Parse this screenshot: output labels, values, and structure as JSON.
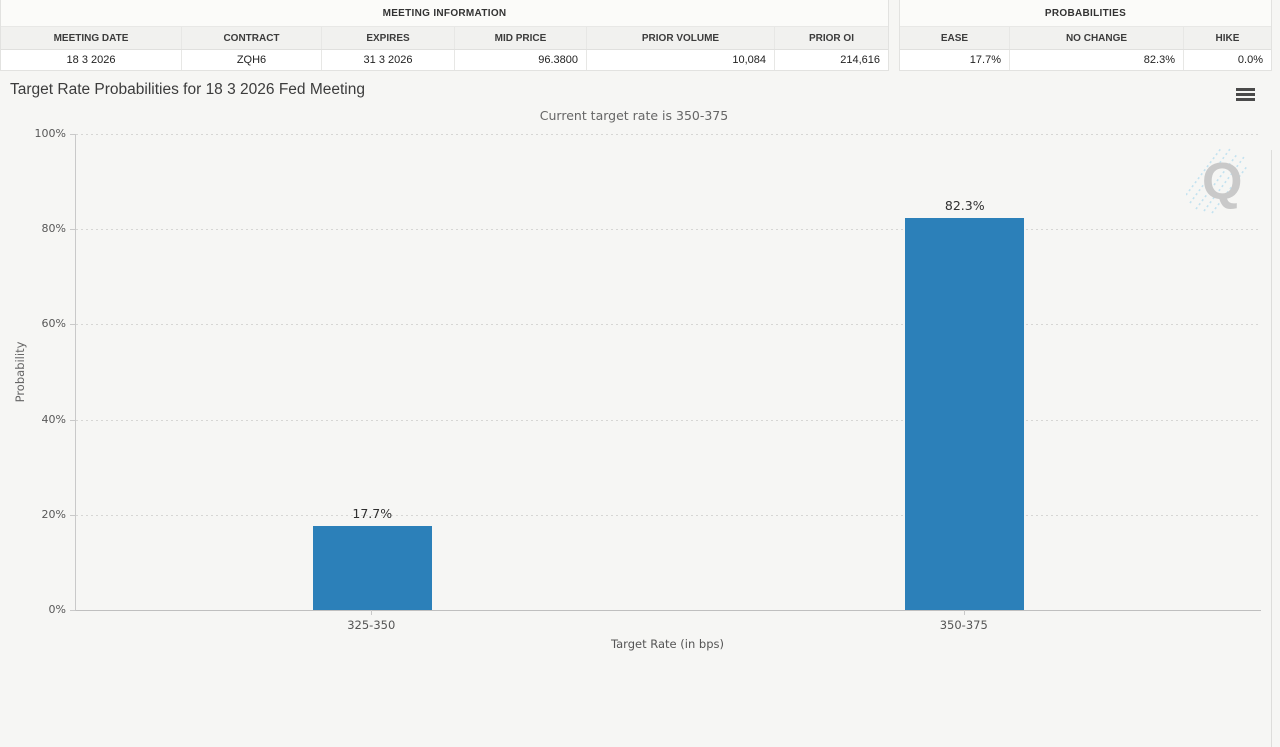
{
  "tables": {
    "meeting_information": {
      "section_title": "MEETING INFORMATION",
      "columns": [
        {
          "label": "MEETING DATE",
          "value": "18 3 2026"
        },
        {
          "label": "CONTRACT",
          "value": "ZQH6"
        },
        {
          "label": "EXPIRES",
          "value": "31 3 2026"
        },
        {
          "label": "MID PRICE",
          "value": "96.3800"
        },
        {
          "label": "PRIOR VOLUME",
          "value": "10,084"
        },
        {
          "label": "PRIOR OI",
          "value": "214,616"
        }
      ]
    },
    "probabilities": {
      "section_title": "PROBABILITIES",
      "columns": [
        {
          "label": "EASE",
          "value": "17.7%"
        },
        {
          "label": "NO CHANGE",
          "value": "82.3%"
        },
        {
          "label": "HIKE",
          "value": "0.0%"
        }
      ]
    }
  },
  "chart": {
    "menu_icon": "hamburger-menu-icon",
    "watermark_letter": "Q"
  },
  "chart_data": {
    "type": "bar",
    "title": "Target Rate Probabilities for 18 3 2026 Fed Meeting",
    "subtitle": "Current target rate is 350-375",
    "categories": [
      "325-350",
      "350-375"
    ],
    "values": [
      17.7,
      82.3
    ],
    "value_labels": [
      "17.7%",
      "82.3%"
    ],
    "xlabel": "Target Rate (in bps)",
    "ylabel": "Probability",
    "ylim": [
      0,
      100
    ],
    "yticks": [
      0,
      20,
      40,
      60,
      80,
      100
    ],
    "ytick_suffix": "%",
    "bar_color": "#2c80b9",
    "grid": "dotted-horizontal",
    "legend": "none"
  }
}
